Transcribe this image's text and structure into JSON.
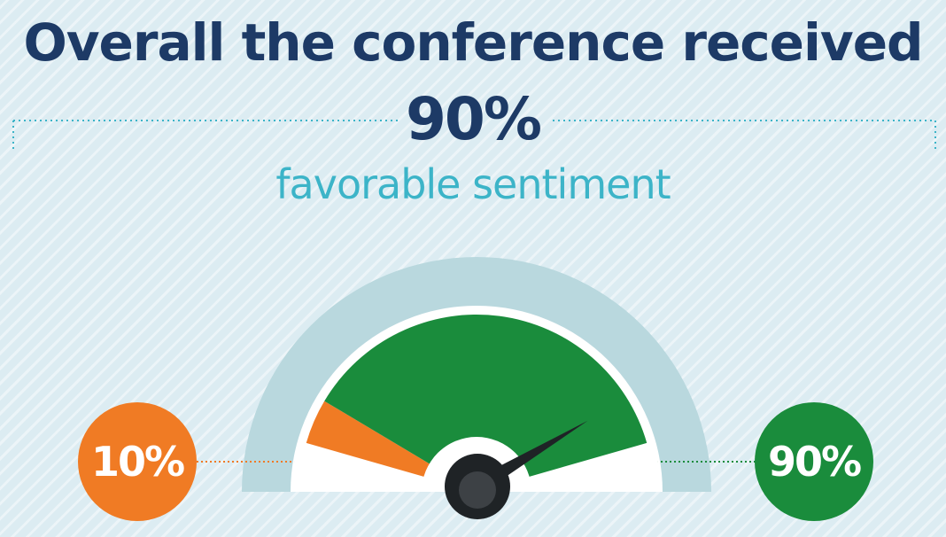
{
  "header": {
    "line1": "Overall the conference received",
    "percent": "90%",
    "line2": "favorable sentiment"
  },
  "chart_data": {
    "type": "gauge",
    "title": "Overall the conference received 90% favorable sentiment",
    "series": [
      {
        "label": "10%",
        "value": 10,
        "color": "#f07b24"
      },
      {
        "label": "90%",
        "value": 90,
        "color": "#1a8c3c"
      }
    ],
    "needle_value": 90,
    "range": [
      0,
      100
    ]
  },
  "colors": {
    "navy": "#1d3a66",
    "teal": "#3cb4c8",
    "orange": "#f07b24",
    "green": "#1a8c3c",
    "track": "#b9d8de",
    "background": "#dcecf2"
  }
}
